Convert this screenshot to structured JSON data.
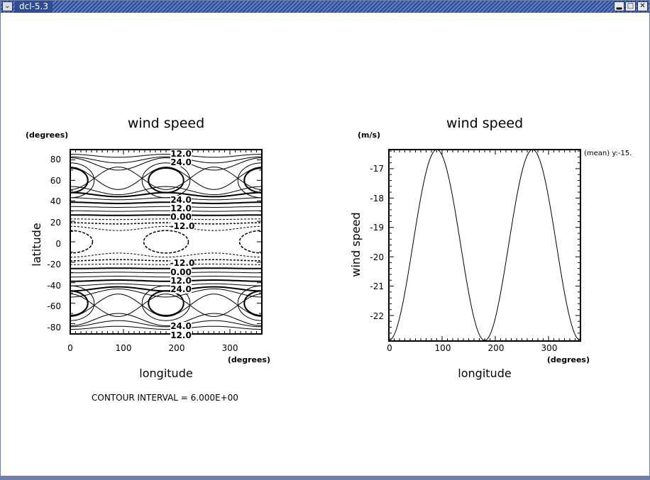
{
  "window": {
    "title": "dcl-5.3",
    "menu_icon": "chevron-down-icon",
    "minimize_icon": "minimize-icon",
    "maximize_icon": "maximize-icon",
    "close_icon": "close-icon"
  },
  "chart_data": [
    {
      "type": "contour",
      "title": "wind speed",
      "xlabel": "longitude",
      "ylabel": "latitude",
      "x_unit": "(degrees)",
      "y_unit": "(degrees)",
      "xlim": [
        0,
        360
      ],
      "ylim": [
        -90,
        90
      ],
      "x_ticks": [
        "0",
        "100",
        "200",
        "300"
      ],
      "y_ticks": [
        "80",
        "60",
        "40",
        "20",
        "0",
        "-20",
        "-40",
        "-60",
        "-80"
      ],
      "contour_labels_top": [
        "12.0",
        "24.0",
        "24.0",
        "12.0",
        "0.00",
        "-12.0"
      ],
      "contour_labels_bottom": [
        "-12.0",
        "0.00",
        "12.0",
        "24.0",
        "24.0",
        "12.0"
      ],
      "contour_interval": 6.0,
      "footnote": "CONTOUR INTERVAL = 6.000E+00"
    },
    {
      "type": "line",
      "title": "wind speed",
      "xlabel": "longitude",
      "ylabel": "wind speed",
      "x_unit": "(degrees)",
      "y_unit": "(m/s)",
      "annotation": "(mean) y:-15.",
      "xlim": [
        0,
        360
      ],
      "ylim": [
        -22.87,
        -16.35
      ],
      "x_ticks": [
        "0",
        "100",
        "200",
        "300"
      ],
      "y_ticks": [
        "-17",
        "-18",
        "-19",
        "-20",
        "-21",
        "-22"
      ],
      "x": [
        0,
        15,
        30,
        45,
        60,
        75,
        90,
        105,
        120,
        135,
        150,
        165,
        180,
        195,
        210,
        225,
        240,
        255,
        270,
        285,
        300,
        315,
        330,
        345,
        360
      ],
      "y": [
        -22.85,
        -22.41,
        -21.22,
        -19.6,
        -17.98,
        -16.79,
        -16.35,
        -16.79,
        -17.98,
        -19.6,
        -21.22,
        -22.41,
        -22.85,
        -22.41,
        -21.22,
        -19.6,
        -17.98,
        -16.79,
        -16.35,
        -16.79,
        -17.98,
        -19.6,
        -21.22,
        -22.41,
        -22.85
      ]
    }
  ]
}
